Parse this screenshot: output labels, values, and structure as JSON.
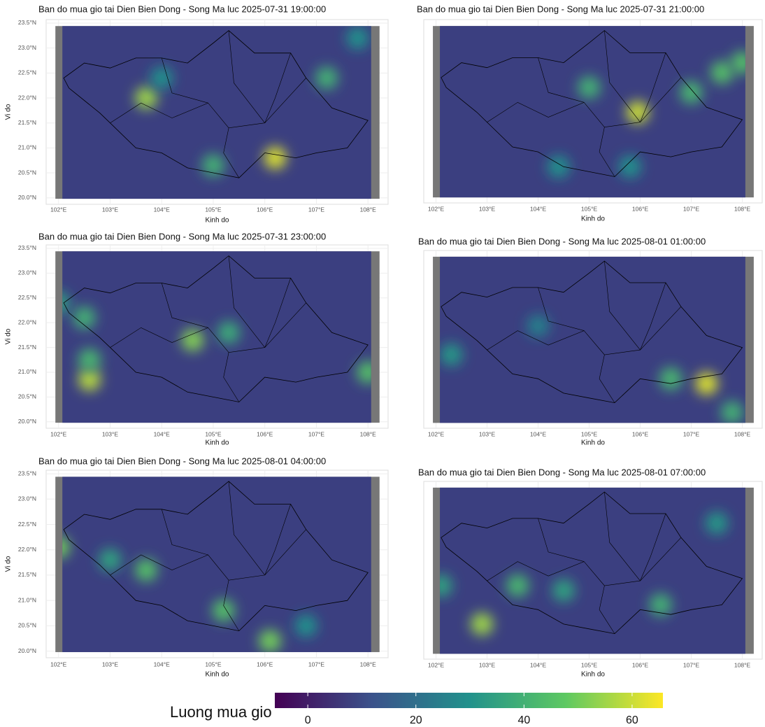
{
  "chart_data": [
    {
      "type": "heatmap",
      "title": "Ban do mua gio tai Dien Bien Dong - Song Ma luc 2025-07-31 19:00:00",
      "x_label": "Kinh do",
      "y_label": "Vi do",
      "xlim": [
        101.76,
        108.39
      ],
      "ylim": [
        19.87,
        23.57
      ],
      "xticks": [
        {
          "value": 102,
          "label": "102°E"
        },
        {
          "value": 103,
          "label": "103°E"
        },
        {
          "value": 104,
          "label": "104°E"
        },
        {
          "value": 105,
          "label": "105°E"
        },
        {
          "value": 106,
          "label": "106°E"
        },
        {
          "value": 107,
          "label": "107°E"
        },
        {
          "value": 108,
          "label": "108°E"
        }
      ],
      "yticks": [
        {
          "value": 20,
          "label": "20.0°N"
        },
        {
          "value": 20.5,
          "label": "20.5°N"
        },
        {
          "value": 21,
          "label": "21.0°N"
        },
        {
          "value": 21.5,
          "label": "21.5°N"
        },
        {
          "value": 22,
          "label": "22.0°N"
        },
        {
          "value": 22.5,
          "label": "22.5°N"
        },
        {
          "value": 23,
          "label": "23.0°N"
        },
        {
          "value": 23.5,
          "label": "23.5°N"
        }
      ],
      "x": [
        103.7,
        106.2,
        107.2,
        105.0,
        104.0,
        107.8
      ],
      "y": [
        22.0,
        20.8,
        22.4,
        20.65,
        22.4,
        23.2
      ],
      "values": [
        55,
        62,
        40,
        40,
        30,
        30
      ]
    },
    {
      "type": "heatmap",
      "title": "Ban do mua gio tai Dien Bien Dong - Song Ma luc 2025-07-31 21:00:00",
      "x_label": "Kinh do",
      "xlim": [
        101.76,
        108.39
      ],
      "ylim": [
        19.87,
        23.57
      ],
      "xticks": [
        {
          "value": 102,
          "label": "102°E"
        },
        {
          "value": 103,
          "label": "103°E"
        },
        {
          "value": 104,
          "label": "104°E"
        },
        {
          "value": 105,
          "label": "105°E"
        },
        {
          "value": 106,
          "label": "106°E"
        },
        {
          "value": 107,
          "label": "107°E"
        },
        {
          "value": 108,
          "label": "108°E"
        }
      ],
      "x": [
        105.95,
        107.6,
        107.0,
        105.0,
        104.4,
        105.8,
        108.0
      ],
      "y": [
        21.7,
        22.5,
        22.1,
        22.2,
        20.6,
        20.6,
        22.7
      ],
      "values": [
        60,
        45,
        42,
        40,
        30,
        30,
        45
      ]
    },
    {
      "type": "heatmap",
      "title": "Ban do mua gio tai Dien Bien Dong - Song Ma luc 2025-07-31 23:00:00",
      "x_label": "Kinh do",
      "y_label": "Vi do",
      "xlim": [
        101.76,
        108.39
      ],
      "ylim": [
        19.87,
        23.57
      ],
      "xticks": [
        {
          "value": 102,
          "label": "102°E"
        },
        {
          "value": 103,
          "label": "103°E"
        },
        {
          "value": 104,
          "label": "104°E"
        },
        {
          "value": 105,
          "label": "105°E"
        },
        {
          "value": 106,
          "label": "106°E"
        },
        {
          "value": 107,
          "label": "107°E"
        },
        {
          "value": 108,
          "label": "108°E"
        }
      ],
      "yticks": [
        {
          "value": 20,
          "label": "20.0°N"
        },
        {
          "value": 20.5,
          "label": "20.5°N"
        },
        {
          "value": 21,
          "label": "21.0°N"
        },
        {
          "value": 21.5,
          "label": "21.5°N"
        },
        {
          "value": 22,
          "label": "22.0°N"
        },
        {
          "value": 22.5,
          "label": "22.5°N"
        },
        {
          "value": 23,
          "label": "23.0°N"
        },
        {
          "value": 23.5,
          "label": "23.5°N"
        }
      ],
      "x": [
        102.6,
        102.6,
        104.6,
        108.0,
        102.5,
        102.0,
        105.3
      ],
      "y": [
        20.85,
        21.25,
        21.65,
        21.0,
        22.1,
        22.4,
        21.8
      ],
      "values": [
        58,
        42,
        52,
        45,
        40,
        35,
        38
      ]
    },
    {
      "type": "heatmap",
      "title": "Ban do mua gio tai Dien Bien Dong - Song Ma luc 2025-08-01 01:00:00",
      "x_label": "Kinh do",
      "xlim": [
        101.76,
        108.39
      ],
      "ylim": [
        19.87,
        23.57
      ],
      "xticks": [
        {
          "value": 102,
          "label": "102°E"
        },
        {
          "value": 103,
          "label": "103°E"
        },
        {
          "value": 104,
          "label": "104°E"
        },
        {
          "value": 105,
          "label": "105°E"
        },
        {
          "value": 106,
          "label": "106°E"
        },
        {
          "value": 107,
          "label": "107°E"
        },
        {
          "value": 108,
          "label": "108°E"
        }
      ],
      "x": [
        107.3,
        106.6,
        102.3,
        107.8,
        104.0
      ],
      "y": [
        20.8,
        20.9,
        21.4,
        20.2,
        22.0
      ],
      "values": [
        62,
        42,
        32,
        40,
        25
      ]
    },
    {
      "type": "heatmap",
      "title": "Ban do mua gio tai Dien Bien Dong - Song Ma luc 2025-08-01 04:00:00",
      "x_label": "Kinh do",
      "y_label": "Vi do",
      "xlim": [
        101.76,
        108.39
      ],
      "ylim": [
        19.87,
        23.57
      ],
      "xticks": [
        {
          "value": 102,
          "label": "102°E"
        },
        {
          "value": 103,
          "label": "103°E"
        },
        {
          "value": 104,
          "label": "104°E"
        },
        {
          "value": 105,
          "label": "105°E"
        },
        {
          "value": 106,
          "label": "106°E"
        },
        {
          "value": 107,
          "label": "107°E"
        },
        {
          "value": 108,
          "label": "108°E"
        }
      ],
      "yticks": [
        {
          "value": 20,
          "label": "20.0°N"
        },
        {
          "value": 20.5,
          "label": "20.5°N"
        },
        {
          "value": 21,
          "label": "21.0°N"
        },
        {
          "value": 21.5,
          "label": "21.5°N"
        },
        {
          "value": 22,
          "label": "22.0°N"
        },
        {
          "value": 22.5,
          "label": "22.5°N"
        },
        {
          "value": 23,
          "label": "23.0°N"
        },
        {
          "value": 23.5,
          "label": "23.5°N"
        }
      ],
      "x": [
        102.0,
        103.7,
        105.2,
        106.1,
        103.0,
        106.8
      ],
      "y": [
        22.05,
        21.6,
        20.8,
        20.2,
        21.8,
        20.5
      ],
      "values": [
        50,
        45,
        45,
        50,
        35,
        30
      ]
    },
    {
      "type": "heatmap",
      "title": "Ban do mua gio tai Dien Bien Dong - Song Ma luc 2025-08-01 07:00:00",
      "x_label": "Kinh do",
      "xlim": [
        101.76,
        108.39
      ],
      "ylim": [
        19.87,
        23.57
      ],
      "xticks": [
        {
          "value": 102,
          "label": "102°E"
        },
        {
          "value": 103,
          "label": "103°E"
        },
        {
          "value": 104,
          "label": "104°E"
        },
        {
          "value": 105,
          "label": "105°E"
        },
        {
          "value": 106,
          "label": "106°E"
        },
        {
          "value": 107,
          "label": "107°E"
        },
        {
          "value": 108,
          "label": "108°E"
        }
      ],
      "x": [
        102.9,
        103.6,
        106.4,
        102.1,
        104.5,
        107.5
      ],
      "y": [
        20.6,
        21.4,
        21.0,
        21.4,
        21.3,
        22.7
      ],
      "values": [
        55,
        42,
        40,
        35,
        35,
        32
      ]
    }
  ],
  "colorbar": {
    "title": "Luong mua gio",
    "lim": [
      -6.1,
      65.7
    ],
    "ticks": [
      0,
      20,
      40,
      60
    ]
  }
}
